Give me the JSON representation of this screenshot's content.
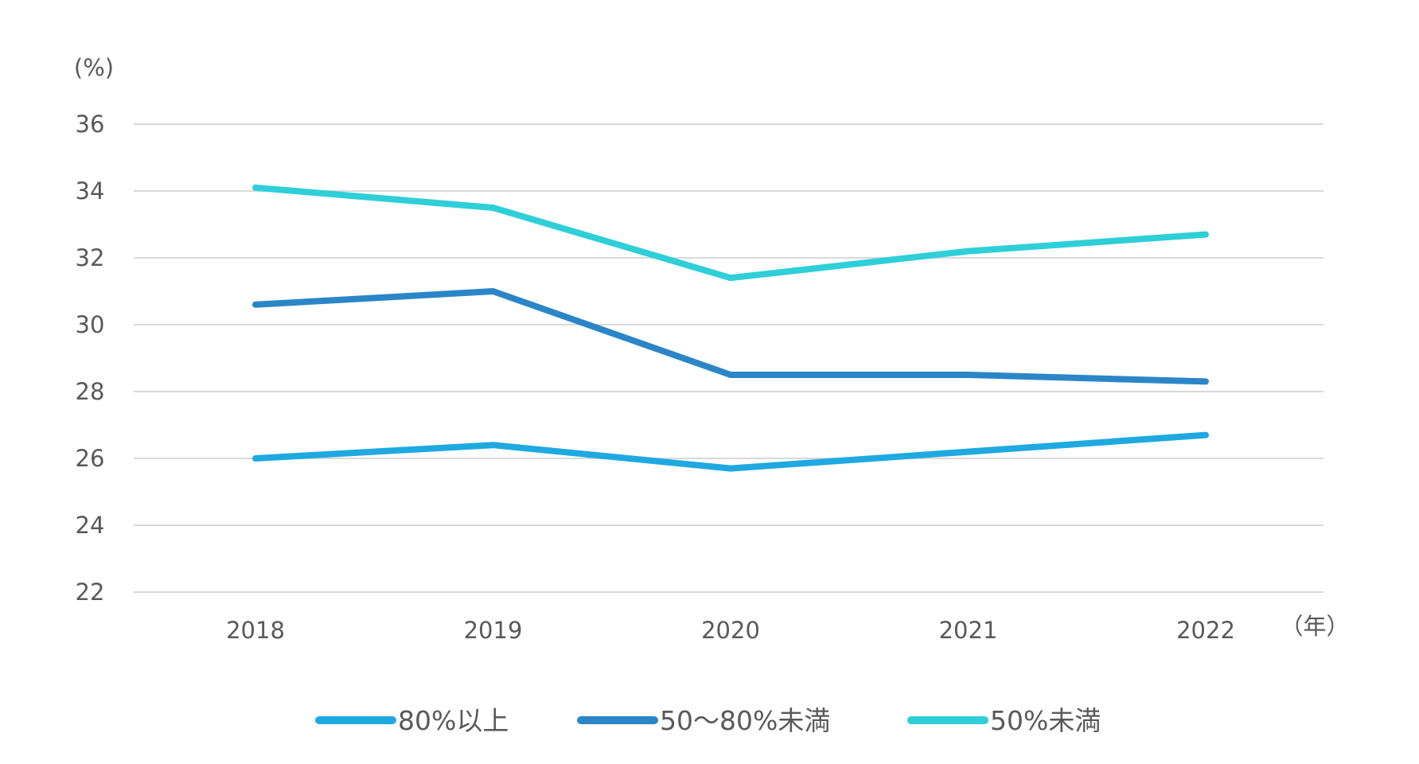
{
  "chart_data": {
    "type": "line",
    "title": "",
    "y_unit_label": "(%)",
    "x_unit_label": "（年）",
    "categories": [
      "2018",
      "2019",
      "2020",
      "2021",
      "2022"
    ],
    "ylim": [
      22,
      36
    ],
    "yticks": [
      "22",
      "24",
      "26",
      "28",
      "30",
      "32",
      "34",
      "36"
    ],
    "grid": true,
    "legend_position": "bottom",
    "series": [
      {
        "name": "80%以上",
        "color": "#1fa9e1",
        "values": [
          26.0,
          26.4,
          25.7,
          26.2,
          26.7
        ]
      },
      {
        "name": "50～80%未満",
        "color": "#2b86c8",
        "values": [
          30.6,
          31.0,
          28.5,
          28.5,
          28.3
        ]
      },
      {
        "name": "50%未満",
        "color": "#2ecfd8",
        "values": [
          34.1,
          33.5,
          31.4,
          32.2,
          32.7
        ]
      }
    ]
  }
}
